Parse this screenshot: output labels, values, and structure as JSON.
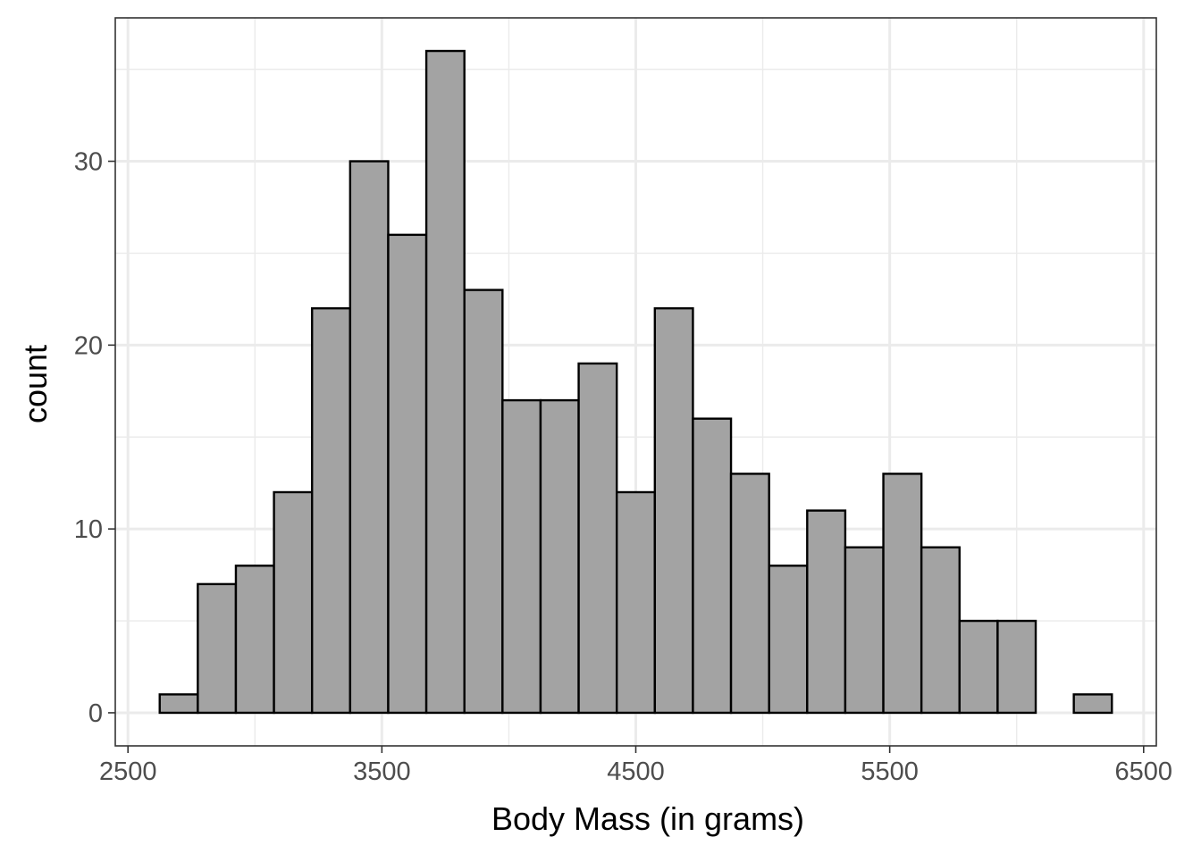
{
  "chart_data": {
    "type": "bar",
    "subtype": "histogram",
    "title": "",
    "xlabel": "Body Mass (in grams)",
    "ylabel": "count",
    "xlim": [
      2450,
      6550
    ],
    "ylim": [
      -1.8,
      37.8
    ],
    "x_ticks": [
      2500,
      3500,
      4500,
      5500,
      6500
    ],
    "x_tick_labels": [
      "2500",
      "3500",
      "4500",
      "5500",
      "6500"
    ],
    "y_ticks": [
      0,
      10,
      20,
      30
    ],
    "y_tick_labels": [
      "0",
      "10",
      "20",
      "30"
    ],
    "bin_width": 150,
    "bins": [
      {
        "x0": 2625,
        "x1": 2775,
        "count": 1
      },
      {
        "x0": 2775,
        "x1": 2925,
        "count": 7
      },
      {
        "x0": 2925,
        "x1": 3075,
        "count": 8
      },
      {
        "x0": 3075,
        "x1": 3225,
        "count": 12
      },
      {
        "x0": 3225,
        "x1": 3375,
        "count": 22
      },
      {
        "x0": 3375,
        "x1": 3525,
        "count": 30
      },
      {
        "x0": 3525,
        "x1": 3675,
        "count": 26
      },
      {
        "x0": 3675,
        "x1": 3825,
        "count": 36
      },
      {
        "x0": 3825,
        "x1": 3975,
        "count": 23
      },
      {
        "x0": 3975,
        "x1": 4125,
        "count": 17
      },
      {
        "x0": 4125,
        "x1": 4275,
        "count": 17
      },
      {
        "x0": 4275,
        "x1": 4425,
        "count": 19
      },
      {
        "x0": 4425,
        "x1": 4575,
        "count": 12
      },
      {
        "x0": 4575,
        "x1": 4725,
        "count": 22
      },
      {
        "x0": 4725,
        "x1": 4875,
        "count": 16
      },
      {
        "x0": 4875,
        "x1": 5025,
        "count": 13
      },
      {
        "x0": 5025,
        "x1": 5175,
        "count": 8
      },
      {
        "x0": 5175,
        "x1": 5325,
        "count": 11
      },
      {
        "x0": 5325,
        "x1": 5475,
        "count": 9
      },
      {
        "x0": 5475,
        "x1": 5625,
        "count": 13
      },
      {
        "x0": 5625,
        "x1": 5775,
        "count": 9
      },
      {
        "x0": 5775,
        "x1": 5925,
        "count": 5
      },
      {
        "x0": 5925,
        "x1": 6075,
        "count": 5
      },
      {
        "x0": 6075,
        "x1": 6225,
        "count": 0
      },
      {
        "x0": 6225,
        "x1": 6375,
        "count": 1
      }
    ],
    "grid": true,
    "legend": "none",
    "colors": {
      "bar_fill": "#a3a3a3",
      "bar_stroke": "#000000",
      "grid": "#ebebeb",
      "panel_border": "#333333",
      "tick_label": "#4d4d4d",
      "background": "#ffffff"
    }
  }
}
